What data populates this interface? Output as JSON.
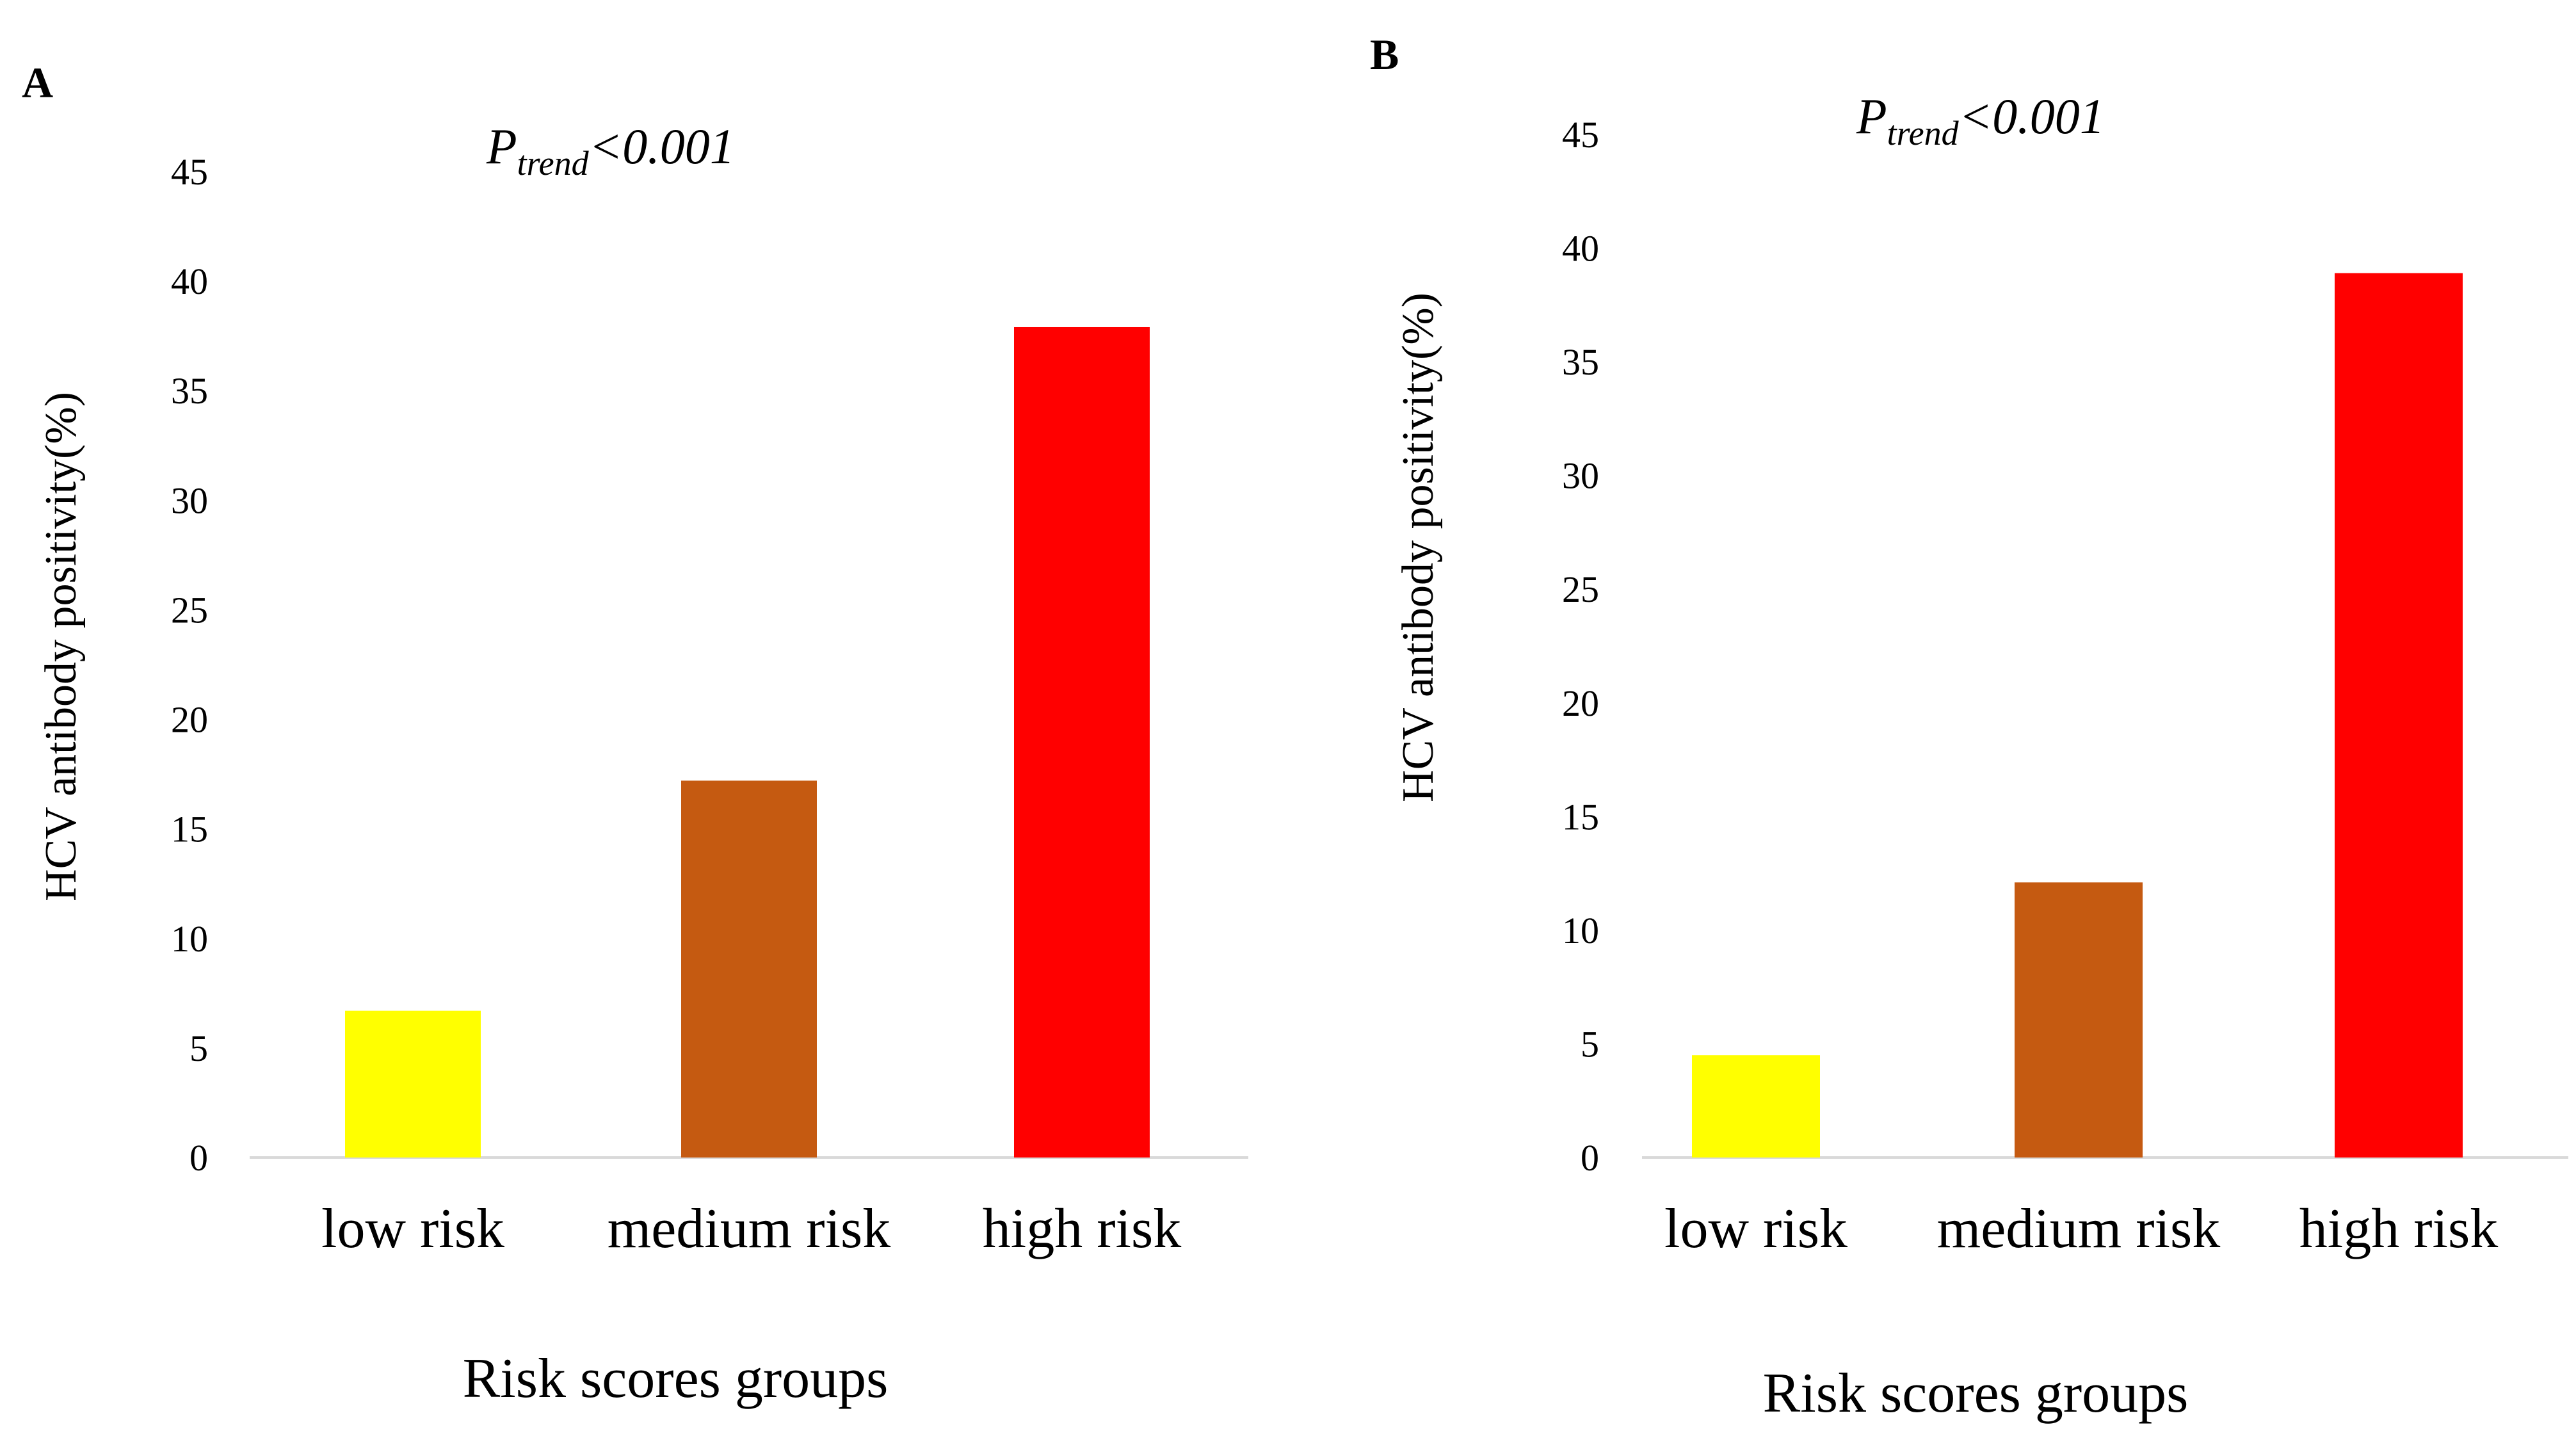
{
  "chart_data": [
    {
      "type": "bar",
      "panel": "A",
      "annotation": {
        "p": "P",
        "sub": "trend",
        "rest": "<0.001"
      },
      "categories": [
        "low risk",
        "medium risk",
        "high risk"
      ],
      "values": [
        6.7,
        17.2,
        37.9
      ],
      "colors": [
        "#ffff00",
        "#c55a11",
        "#ff0000"
      ],
      "xlabel": "Risk scores groups",
      "ylabel": "HCV antibody positivity(%)",
      "ylim": [
        0,
        45
      ],
      "yticks": [
        0,
        5,
        10,
        15,
        20,
        25,
        30,
        35,
        40,
        45
      ],
      "grid": false
    },
    {
      "type": "bar",
      "panel": "B",
      "annotation": {
        "p": "P",
        "sub": "trend",
        "rest": "<0.001"
      },
      "categories": [
        "low risk",
        "medium risk",
        "high risk"
      ],
      "values": [
        4.5,
        12.1,
        38.9
      ],
      "colors": [
        "#ffff00",
        "#c55a11",
        "#ff0000"
      ],
      "xlabel": "Risk scores groups",
      "ylabel": "HCV antibody positivity(%)",
      "ylim": [
        0,
        45
      ],
      "yticks": [
        0,
        5,
        10,
        15,
        20,
        25,
        30,
        35,
        40,
        45
      ],
      "grid": false
    }
  ]
}
